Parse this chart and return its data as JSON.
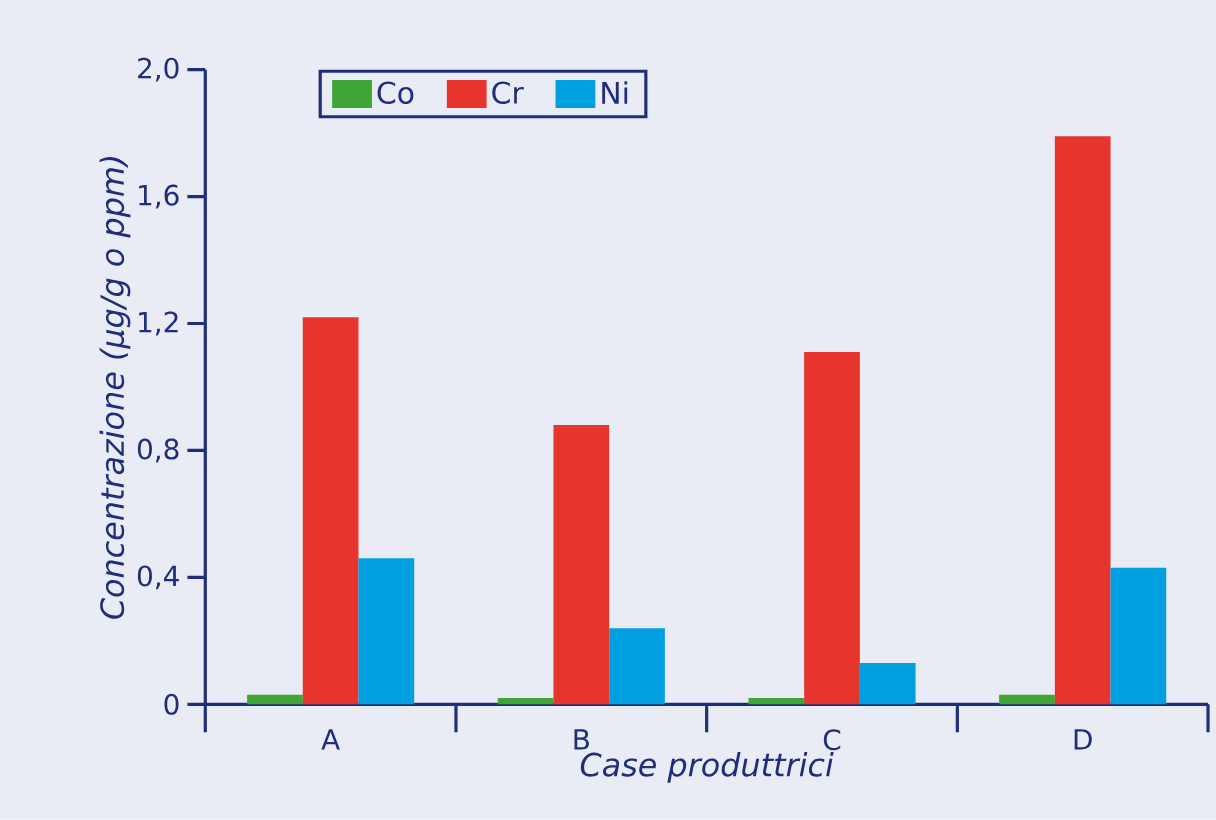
{
  "chart_data": {
    "type": "bar",
    "xlabel": "Case produttrici",
    "ylabel": "Concentrazione (µg/g o ppm)",
    "categories": [
      "A",
      "B",
      "C",
      "D"
    ],
    "series": [
      {
        "name": "Co",
        "color": "#3fa535",
        "values": [
          0.03,
          0.02,
          0.02,
          0.03
        ]
      },
      {
        "name": "Cr",
        "color": "#e5352c",
        "values": [
          1.22,
          0.88,
          1.11,
          1.79
        ]
      },
      {
        "name": "Ni",
        "color": "#009fe0",
        "values": [
          0.46,
          0.24,
          0.13,
          0.43
        ]
      }
    ],
    "ylim": [
      0,
      2.0
    ],
    "yticks": [
      0,
      {
        "value": 0.4,
        "label": "0,4"
      },
      {
        "value": 0.8,
        "label": "0,8"
      },
      {
        "value": 1.2,
        "label": "1,2"
      },
      {
        "value": 1.6,
        "label": "1,6"
      },
      {
        "value": 2.0,
        "label": "2,0"
      }
    ],
    "legend": "top left",
    "grid": false
  }
}
